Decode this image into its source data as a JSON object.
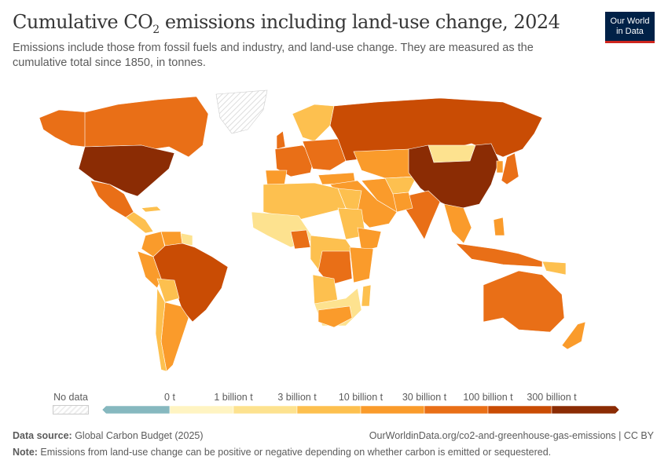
{
  "header": {
    "title_pre": "Cumulative CO",
    "title_sub": "2",
    "title_post": " emissions including land-use change, 2024",
    "subtitle": "Emissions include those from fossil fuels and industry, and land-use change. They are measured as the cumulative total since 1850, in tonnes.",
    "logo_line1": "Our World",
    "logo_line2": "in Data"
  },
  "legend": {
    "no_data_label": "No data",
    "tick_labels": [
      "0 t",
      "1 billion t",
      "3 billion t",
      "10 billion t",
      "30 billion t",
      "100 billion t",
      "300 billion t"
    ],
    "bin_colors": [
      "#86b8bf",
      "#fff4c2",
      "#fde28f",
      "#fdc04f",
      "#fa9b2b",
      "#e96f17",
      "#c94c04",
      "#8b2c04"
    ],
    "no_data_color": "#eeeeee"
  },
  "map_data": {
    "unit": "tonnes",
    "year": 2024,
    "countries": [
      {
        "name": "United States",
        "bin": 7
      },
      {
        "name": "China",
        "bin": 7
      },
      {
        "name": "Russia",
        "bin": 6
      },
      {
        "name": "Brazil",
        "bin": 6
      },
      {
        "name": "Indonesia",
        "bin": 5
      },
      {
        "name": "India",
        "bin": 5
      },
      {
        "name": "Canada",
        "bin": 5
      },
      {
        "name": "Australia",
        "bin": 5
      },
      {
        "name": "Mexico",
        "bin": 5
      },
      {
        "name": "Greenland",
        "bin": -1
      }
    ]
  },
  "footer": {
    "source_label": "Data source:",
    "source_value": " Global Carbon Budget (2025)",
    "url": "OurWorldinData.org/co2-and-greenhouse-gas-emissions | CC BY",
    "note_label": "Note:",
    "note_value": " Emissions from land-use change can be positive or negative depending on whether carbon is emitted or sequestered."
  }
}
